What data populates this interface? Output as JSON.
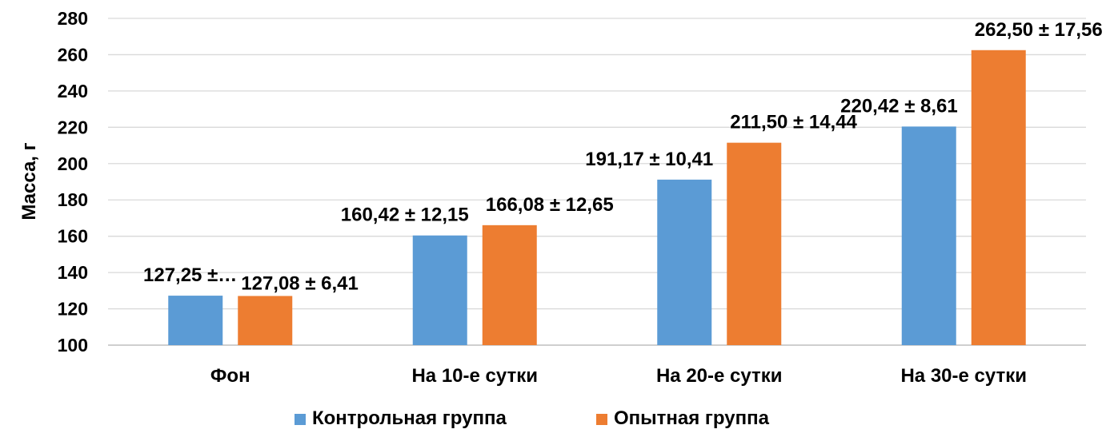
{
  "chart_data": {
    "type": "bar",
    "title": "",
    "xlabel": "",
    "ylabel": "Масса, г",
    "ylim": [
      100,
      280
    ],
    "yticks": [
      100,
      120,
      140,
      160,
      180,
      200,
      220,
      240,
      260,
      280
    ],
    "grid": true,
    "legend_position": "bottom",
    "categories": [
      "Фон",
      "На 10-е сутки",
      "На 20-е сутки",
      "На 30-е сутки"
    ],
    "series": [
      {
        "name": "Контрольная группа",
        "color": "#5b9bd5",
        "values": [
          127.25,
          160.42,
          191.17,
          220.42
        ],
        "labels": [
          "127,25 ±…",
          "160,42 ± 12,15",
          "191,17 ± 10,41",
          "220,42 ± 8,61"
        ]
      },
      {
        "name": "Опытная группа",
        "color": "#ed7d31",
        "values": [
          127.08,
          166.08,
          211.5,
          262.5
        ],
        "labels": [
          "127,08 ± 6,41",
          "166,08 ± 12,65",
          "211,50 ± 14,44",
          "262,50 ± 17,56"
        ]
      }
    ]
  }
}
